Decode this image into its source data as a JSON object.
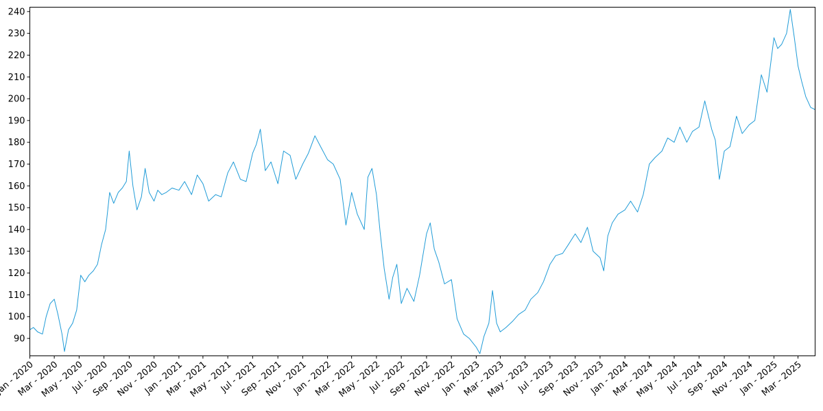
{
  "chart_data": {
    "type": "line",
    "title": "",
    "xlabel": "",
    "ylabel": "",
    "xlim": [
      "2020-01-01",
      "2025-04-12"
    ],
    "ylim": [
      82,
      242
    ],
    "x_ticks": [
      "Jan - 2020",
      "Mar - 2020",
      "May - 2020",
      "Jul - 2020",
      "Sep - 2020",
      "Nov - 2020",
      "Jan - 2021",
      "Mar - 2021",
      "May - 2021",
      "Jul - 2021",
      "Sep - 2021",
      "Nov - 2021",
      "Jan - 2022",
      "Mar - 2022",
      "May - 2022",
      "Jul - 2022",
      "Sep - 2022",
      "Nov - 2022",
      "Jan - 2023",
      "Mar - 2023",
      "May - 2023",
      "Jul - 2023",
      "Sep - 2023",
      "Nov - 2023",
      "Jan - 2024",
      "Mar - 2024",
      "May - 2024",
      "Jul - 2024",
      "Sep - 2024",
      "Nov - 2024",
      "Jan - 2025",
      "Mar - 2025"
    ],
    "y_ticks": [
      90,
      100,
      110,
      120,
      130,
      140,
      150,
      160,
      170,
      180,
      190,
      200,
      210,
      220,
      230,
      240
    ],
    "grid": false,
    "line_color": "#1f9bd7",
    "series": [
      {
        "points": [
          [
            "2020-01-01",
            94
          ],
          [
            "2020-01-10",
            95
          ],
          [
            "2020-01-20",
            93
          ],
          [
            "2020-02-01",
            92
          ],
          [
            "2020-02-10",
            100
          ],
          [
            "2020-02-20",
            106
          ],
          [
            "2020-03-01",
            108
          ],
          [
            "2020-03-10",
            101
          ],
          [
            "2020-03-20",
            92
          ],
          [
            "2020-03-26",
            84
          ],
          [
            "2020-04-05",
            94
          ],
          [
            "2020-04-15",
            97
          ],
          [
            "2020-04-25",
            103
          ],
          [
            "2020-05-05",
            119
          ],
          [
            "2020-05-15",
            116
          ],
          [
            "2020-05-25",
            119
          ],
          [
            "2020-06-05",
            121
          ],
          [
            "2020-06-15",
            124
          ],
          [
            "2020-06-25",
            133
          ],
          [
            "2020-07-05",
            140
          ],
          [
            "2020-07-15",
            157
          ],
          [
            "2020-07-25",
            152
          ],
          [
            "2020-08-05",
            157
          ],
          [
            "2020-08-15",
            159
          ],
          [
            "2020-08-25",
            162
          ],
          [
            "2020-09-01",
            176
          ],
          [
            "2020-09-10",
            160
          ],
          [
            "2020-09-20",
            149
          ],
          [
            "2020-10-01",
            155
          ],
          [
            "2020-10-10",
            168
          ],
          [
            "2020-10-20",
            157
          ],
          [
            "2020-11-01",
            153
          ],
          [
            "2020-11-10",
            158
          ],
          [
            "2020-11-20",
            156
          ],
          [
            "2020-12-01",
            157
          ],
          [
            "2020-12-15",
            159
          ],
          [
            "2021-01-01",
            158
          ],
          [
            "2021-01-15",
            162
          ],
          [
            "2021-02-01",
            156
          ],
          [
            "2021-02-15",
            165
          ],
          [
            "2021-03-01",
            161
          ],
          [
            "2021-03-15",
            153
          ],
          [
            "2021-04-01",
            156
          ],
          [
            "2021-04-15",
            155
          ],
          [
            "2021-05-01",
            166
          ],
          [
            "2021-05-15",
            171
          ],
          [
            "2021-06-01",
            163
          ],
          [
            "2021-06-15",
            162
          ],
          [
            "2021-07-01",
            175
          ],
          [
            "2021-07-10",
            179
          ],
          [
            "2021-07-20",
            186
          ],
          [
            "2021-08-01",
            167
          ],
          [
            "2021-08-15",
            171
          ],
          [
            "2021-09-01",
            161
          ],
          [
            "2021-09-15",
            176
          ],
          [
            "2021-10-01",
            174
          ],
          [
            "2021-10-15",
            163
          ],
          [
            "2021-11-01",
            170
          ],
          [
            "2021-11-15",
            175
          ],
          [
            "2021-12-01",
            183
          ],
          [
            "2021-12-15",
            178
          ],
          [
            "2022-01-01",
            172
          ],
          [
            "2022-01-15",
            170
          ],
          [
            "2022-02-01",
            163
          ],
          [
            "2022-02-15",
            142
          ],
          [
            "2022-03-01",
            157
          ],
          [
            "2022-03-15",
            147
          ],
          [
            "2022-04-01",
            140
          ],
          [
            "2022-04-10",
            164
          ],
          [
            "2022-04-20",
            168
          ],
          [
            "2022-05-01",
            156
          ],
          [
            "2022-05-10",
            139
          ],
          [
            "2022-05-20",
            122
          ],
          [
            "2022-06-01",
            108
          ],
          [
            "2022-06-10",
            118
          ],
          [
            "2022-06-20",
            124
          ],
          [
            "2022-07-01",
            106
          ],
          [
            "2022-07-15",
            113
          ],
          [
            "2022-08-01",
            107
          ],
          [
            "2022-08-15",
            119
          ],
          [
            "2022-09-01",
            138
          ],
          [
            "2022-09-10",
            143
          ],
          [
            "2022-09-20",
            131
          ],
          [
            "2022-10-01",
            125
          ],
          [
            "2022-10-15",
            115
          ],
          [
            "2022-11-01",
            117
          ],
          [
            "2022-11-15",
            99
          ],
          [
            "2022-12-01",
            92
          ],
          [
            "2022-12-15",
            90
          ],
          [
            "2023-01-01",
            86
          ],
          [
            "2023-01-10",
            83
          ],
          [
            "2023-01-20",
            91
          ],
          [
            "2023-02-01",
            97
          ],
          [
            "2023-02-10",
            112
          ],
          [
            "2023-02-20",
            97
          ],
          [
            "2023-03-01",
            93
          ],
          [
            "2023-03-15",
            95
          ],
          [
            "2023-04-01",
            98
          ],
          [
            "2023-04-15",
            101
          ],
          [
            "2023-05-01",
            103
          ],
          [
            "2023-05-15",
            108
          ],
          [
            "2023-06-01",
            111
          ],
          [
            "2023-06-15",
            116
          ],
          [
            "2023-07-01",
            124
          ],
          [
            "2023-07-15",
            128
          ],
          [
            "2023-08-01",
            129
          ],
          [
            "2023-08-15",
            133
          ],
          [
            "2023-09-01",
            138
          ],
          [
            "2023-09-15",
            134
          ],
          [
            "2023-10-01",
            141
          ],
          [
            "2023-10-15",
            130
          ],
          [
            "2023-11-01",
            127
          ],
          [
            "2023-11-10",
            121
          ],
          [
            "2023-11-20",
            137
          ],
          [
            "2023-12-01",
            143
          ],
          [
            "2023-12-15",
            147
          ],
          [
            "2024-01-01",
            149
          ],
          [
            "2024-01-15",
            153
          ],
          [
            "2024-02-01",
            148
          ],
          [
            "2024-02-15",
            156
          ],
          [
            "2024-03-01",
            170
          ],
          [
            "2024-03-15",
            173
          ],
          [
            "2024-04-01",
            176
          ],
          [
            "2024-04-15",
            182
          ],
          [
            "2024-05-01",
            180
          ],
          [
            "2024-05-15",
            187
          ],
          [
            "2024-06-01",
            180
          ],
          [
            "2024-06-15",
            185
          ],
          [
            "2024-07-01",
            187
          ],
          [
            "2024-07-15",
            199
          ],
          [
            "2024-08-01",
            186
          ],
          [
            "2024-08-10",
            181
          ],
          [
            "2024-08-20",
            163
          ],
          [
            "2024-09-01",
            176
          ],
          [
            "2024-09-15",
            178
          ],
          [
            "2024-10-01",
            192
          ],
          [
            "2024-10-15",
            184
          ],
          [
            "2024-11-01",
            188
          ],
          [
            "2024-11-15",
            190
          ],
          [
            "2024-12-01",
            211
          ],
          [
            "2024-12-15",
            203
          ],
          [
            "2025-01-01",
            228
          ],
          [
            "2025-01-10",
            223
          ],
          [
            "2025-01-20",
            225
          ],
          [
            "2025-02-01",
            230
          ],
          [
            "2025-02-10",
            241
          ],
          [
            "2025-02-20",
            228
          ],
          [
            "2025-03-01",
            215
          ],
          [
            "2025-03-10",
            208
          ],
          [
            "2025-03-20",
            201
          ],
          [
            "2025-04-01",
            196
          ],
          [
            "2025-04-12",
            195
          ]
        ]
      }
    ]
  }
}
